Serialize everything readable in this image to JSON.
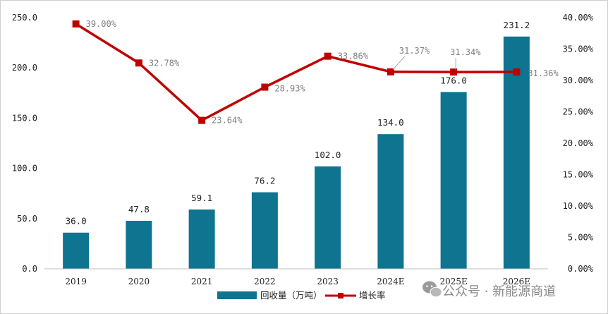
{
  "chart_data": {
    "type": "bar",
    "categories": [
      "2019",
      "2020",
      "2021",
      "2022",
      "2023",
      "2024E",
      "2025E",
      "2026E"
    ],
    "series": [
      {
        "name": "回收量（万吨）",
        "type": "bar",
        "axis": "left",
        "color": "#0e7490",
        "values": [
          36.0,
          47.8,
          59.1,
          76.2,
          102.0,
          134.0,
          176.0,
          231.2
        ],
        "labels": [
          "36.0",
          "47.8",
          "59.1",
          "76.2",
          "102.0",
          "134.0",
          "176.0",
          "231.2"
        ]
      },
      {
        "name": "增长率",
        "type": "line",
        "axis": "right",
        "color": "#c00000",
        "values": [
          39.0,
          32.78,
          23.64,
          28.93,
          33.86,
          31.37,
          31.34,
          31.36
        ],
        "labels": [
          "39.00%",
          "32.78%",
          "23.64%",
          "28.93%",
          "33.86%",
          "31.37%",
          "31.34%",
          "31.36%"
        ]
      }
    ],
    "y_left": {
      "min": 0,
      "max": 250,
      "ticks": [
        0,
        50,
        100,
        150,
        200,
        250
      ],
      "tick_labels": [
        "0.0",
        "50.0",
        "100.0",
        "150.0",
        "200.0",
        "250.0"
      ]
    },
    "y_right": {
      "min": 0,
      "max": 40,
      "ticks": [
        0,
        5,
        10,
        15,
        20,
        25,
        30,
        35,
        40
      ],
      "tick_labels": [
        "0.00%",
        "5.00%",
        "10.00%",
        "15.00%",
        "20.00%",
        "25.00%",
        "30.00%",
        "35.00%",
        "40.00%"
      ]
    },
    "grid": false,
    "legend_position": "bottom"
  },
  "watermark": {
    "text": "公众号 · 新能源商道",
    "icon": "wechat-icon"
  }
}
